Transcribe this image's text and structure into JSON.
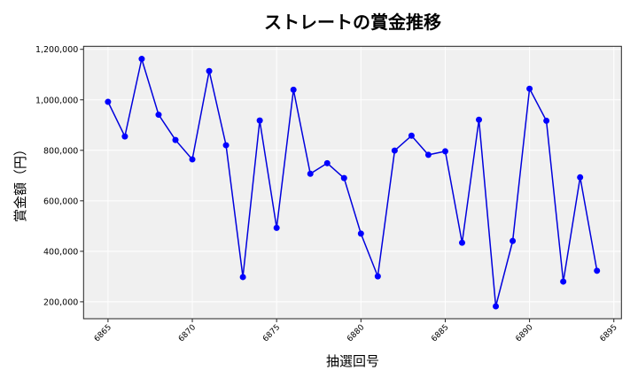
{
  "chart_data": {
    "type": "line",
    "title": "ストレートの賞金推移",
    "xlabel": "抽選回号",
    "ylabel": "賞金額（円）",
    "xlim": [
      6863.55,
      6895.45
    ],
    "ylim": [
      133000,
      1212000
    ],
    "xticks": [
      6865,
      6870,
      6875,
      6880,
      6885,
      6890,
      6895
    ],
    "yticks": [
      200000,
      400000,
      600000,
      800000,
      1000000,
      1200000
    ],
    "ytick_labels": [
      "200,000",
      "400,000",
      "600,000",
      "800,000",
      "1,000,000",
      "1,200,000"
    ],
    "grid": true,
    "background_color": "#f0f0f0",
    "line_color": "#0000dd",
    "marker_color": "#0000ff",
    "x": [
      6865,
      6866,
      6867,
      6868,
      6869,
      6870,
      6871,
      6872,
      6873,
      6874,
      6875,
      6876,
      6877,
      6878,
      6879,
      6880,
      6881,
      6882,
      6883,
      6884,
      6885,
      6886,
      6887,
      6888,
      6889,
      6890,
      6891,
      6892,
      6893,
      6894
    ],
    "values": [
      992000,
      855000,
      1162000,
      941000,
      841000,
      764000,
      1114000,
      820000,
      298000,
      918000,
      493000,
      1040000,
      707000,
      749000,
      690000,
      470000,
      301000,
      799000,
      858000,
      782000,
      796000,
      434000,
      921000,
      182000,
      441000,
      1044000,
      917000,
      280000,
      693000,
      323000
    ]
  }
}
